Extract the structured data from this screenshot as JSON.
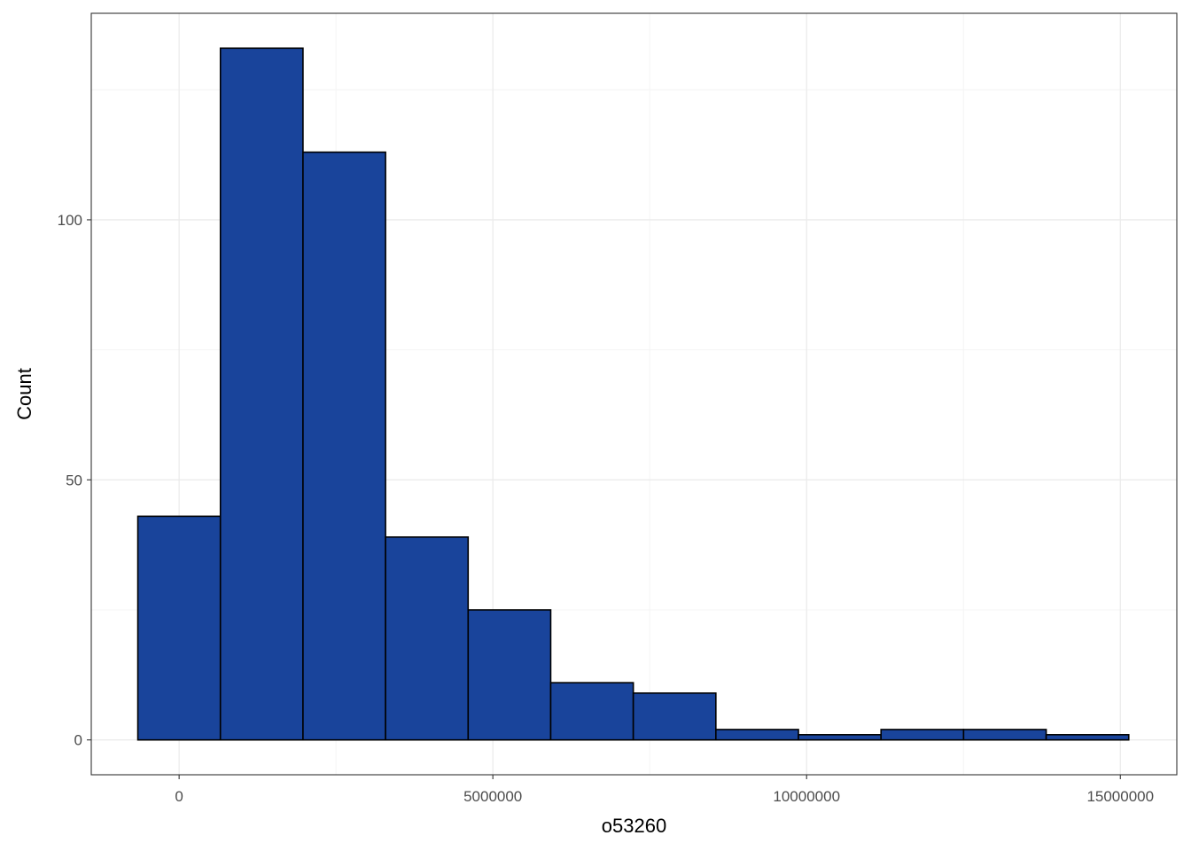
{
  "chart_data": {
    "type": "bar",
    "title": "",
    "xlabel": "o53260",
    "ylabel": "Count",
    "bins": [
      {
        "x0": -658000,
        "x1": 658000,
        "count": 43
      },
      {
        "x0": 658000,
        "x1": 1974000,
        "count": 133
      },
      {
        "x0": 1974000,
        "x1": 3290000,
        "count": 113
      },
      {
        "x0": 3290000,
        "x1": 4606000,
        "count": 39
      },
      {
        "x0": 4606000,
        "x1": 5922000,
        "count": 25
      },
      {
        "x0": 5922000,
        "x1": 7238000,
        "count": 11
      },
      {
        "x0": 7238000,
        "x1": 8554000,
        "count": 9
      },
      {
        "x0": 8554000,
        "x1": 9870000,
        "count": 2
      },
      {
        "x0": 9870000,
        "x1": 11186000,
        "count": 1
      },
      {
        "x0": 11186000,
        "x1": 12502000,
        "count": 2
      },
      {
        "x0": 12502000,
        "x1": 13818000,
        "count": 2
      },
      {
        "x0": 13818000,
        "x1": 15134000,
        "count": 1
      }
    ],
    "xlim": [
      -1400000,
      15900000
    ],
    "ylim": [
      -6.7,
      139.7
    ],
    "x_ticks": [
      0,
      5000000,
      10000000,
      15000000
    ],
    "x_tick_labels": [
      "0",
      "5000000",
      "10000000",
      "15000000"
    ],
    "y_ticks": [
      0,
      50,
      100
    ],
    "y_tick_labels": [
      "0",
      "50",
      "100"
    ],
    "grid": true,
    "colors": {
      "bar_fill": "#19449B",
      "bar_outline": "#000000",
      "grid_major": "#EBEBEB",
      "grid_minor": "#F4F4F4",
      "panel_border": "#333333"
    }
  }
}
